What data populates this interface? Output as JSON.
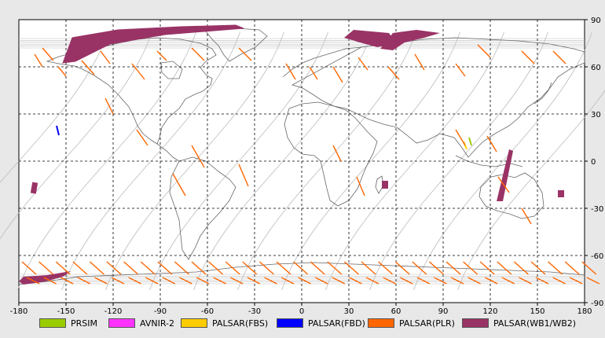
{
  "map": {
    "x_ticks": [
      "-180",
      "-150",
      "-120",
      "-90",
      "-60",
      "-30",
      "0",
      "30",
      "60",
      "90",
      "120",
      "150",
      "180"
    ],
    "y_ticks": [
      "90",
      "60",
      "30",
      "0",
      "-30",
      "-60",
      "-90"
    ],
    "x_range": [
      -180,
      180
    ],
    "y_range": [
      -90,
      90
    ],
    "grid": "dashed"
  },
  "legend": [
    {
      "label": "PRSIM",
      "color": "#99cc00"
    },
    {
      "label": "AVNIR-2",
      "color": "#ff33ff"
    },
    {
      "label": "PALSAR(FBS)",
      "color": "#ffcc00"
    },
    {
      "label": "PALSAR(FBD)",
      "color": "#0000ff"
    },
    {
      "label": "PALSAR(PLR)",
      "color": "#ff6600"
    },
    {
      "label": "PALSAR(WB1/WB2)",
      "color": "#993366"
    }
  ],
  "colors": {
    "background": "#ffffff",
    "coast": "#666666",
    "orbit": "#bbbbbb",
    "wb": "#993366",
    "plr": "#ff6600",
    "fbd": "#0000ff",
    "prism": "#99cc00",
    "fbs": "#ffcc00"
  }
}
